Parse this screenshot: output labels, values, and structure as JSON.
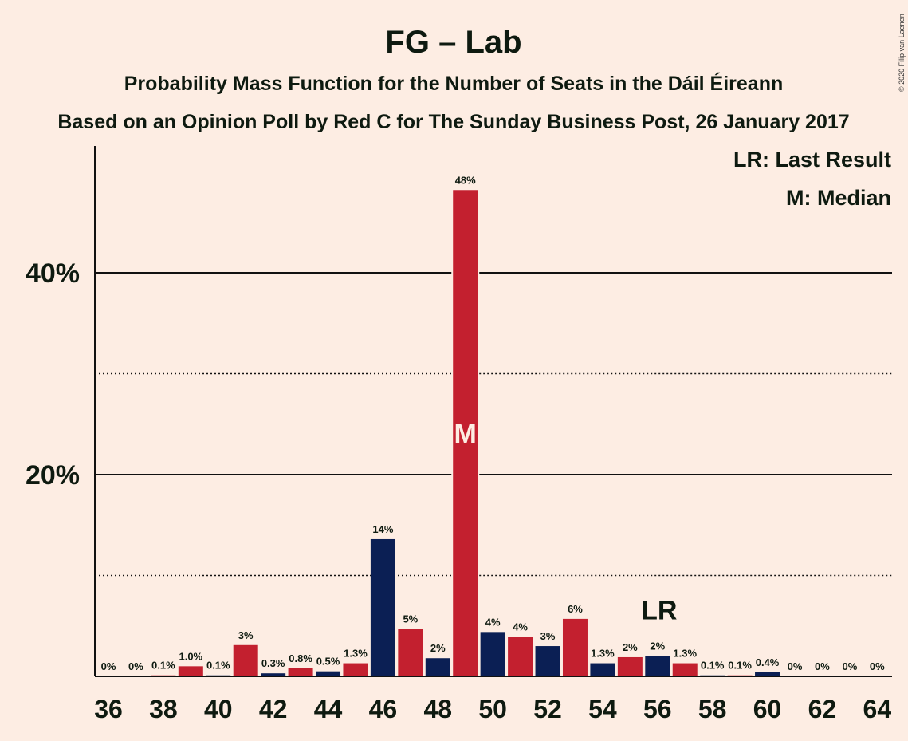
{
  "chart_data": {
    "type": "bar",
    "title": "FG – Lab",
    "subtitles": [
      "Probability Mass Function for the Number of Seats in the Dáil Éireann",
      "Based on an Opinion Poll by Red C for The Sunday Business Post, 26 January 2017"
    ],
    "copyright": "© 2020 Filip van Laenen",
    "legend": {
      "placement": "top-right",
      "items": [
        "LR: Last Result",
        "M: Median"
      ]
    },
    "ylim": [
      0,
      52
    ],
    "y_ticks": [
      {
        "value": 20,
        "label": "20%",
        "style": "solid"
      },
      {
        "value": 40,
        "label": "40%",
        "style": "solid"
      }
    ],
    "y_minor_gridlines": [
      10,
      30
    ],
    "x_ticks": [
      36,
      38,
      40,
      42,
      44,
      46,
      48,
      50,
      52,
      54,
      56,
      58,
      60,
      62,
      64
    ],
    "series_colors": {
      "FG": "#c3202f",
      "Lab": "#0b1f54"
    },
    "bars": [
      {
        "x": 36,
        "value": 0,
        "label": "0%",
        "party": "FG"
      },
      {
        "x": 37,
        "value": 0,
        "label": "0%",
        "party": "Lab"
      },
      {
        "x": 38,
        "value": 0.1,
        "label": "0.1%",
        "party": "FG"
      },
      {
        "x": 39,
        "value": 1.0,
        "label": "1.0%",
        "party": "FG"
      },
      {
        "x": 40,
        "value": 0.1,
        "label": "0.1%",
        "party": "Lab"
      },
      {
        "x": 41,
        "value": 3.1,
        "label": "3%",
        "party": "FG"
      },
      {
        "x": 42,
        "value": 0.3,
        "label": "0.3%",
        "party": "Lab"
      },
      {
        "x": 43,
        "value": 0.8,
        "label": "0.8%",
        "party": "FG"
      },
      {
        "x": 44,
        "value": 0.5,
        "label": "0.5%",
        "party": "Lab"
      },
      {
        "x": 45,
        "value": 1.3,
        "label": "1.3%",
        "party": "FG"
      },
      {
        "x": 46,
        "value": 13.6,
        "label": "14%",
        "party": "Lab"
      },
      {
        "x": 47,
        "value": 4.7,
        "label": "5%",
        "party": "FG"
      },
      {
        "x": 48,
        "value": 1.8,
        "label": "2%",
        "party": "Lab"
      },
      {
        "x": 49,
        "value": 48.2,
        "label": "48%",
        "party": "FG",
        "median": true
      },
      {
        "x": 50,
        "value": 4.4,
        "label": "4%",
        "party": "Lab"
      },
      {
        "x": 51,
        "value": 3.9,
        "label": "4%",
        "party": "FG"
      },
      {
        "x": 52,
        "value": 3.0,
        "label": "3%",
        "party": "Lab"
      },
      {
        "x": 53,
        "value": 5.7,
        "label": "6%",
        "party": "FG"
      },
      {
        "x": 54,
        "value": 1.3,
        "label": "1.3%",
        "party": "Lab"
      },
      {
        "x": 55,
        "value": 1.9,
        "label": "2%",
        "party": "FG"
      },
      {
        "x": 56,
        "value": 2.0,
        "label": "2%",
        "party": "Lab",
        "last_result": true
      },
      {
        "x": 57,
        "value": 1.3,
        "label": "1.3%",
        "party": "FG"
      },
      {
        "x": 58,
        "value": 0.1,
        "label": "0.1%",
        "party": "Lab"
      },
      {
        "x": 59,
        "value": 0.1,
        "label": "0.1%",
        "party": "FG"
      },
      {
        "x": 60,
        "value": 0.4,
        "label": "0.4%",
        "party": "Lab"
      },
      {
        "x": 61,
        "value": 0,
        "label": "0%",
        "party": "FG"
      },
      {
        "x": 62,
        "value": 0,
        "label": "0%",
        "party": "Lab"
      },
      {
        "x": 63,
        "value": 0,
        "label": "0%",
        "party": "FG"
      },
      {
        "x": 64,
        "value": 0,
        "label": "0%",
        "party": "Lab"
      }
    ],
    "markers": {
      "median_label": "M",
      "last_result_label": "LR"
    }
  }
}
